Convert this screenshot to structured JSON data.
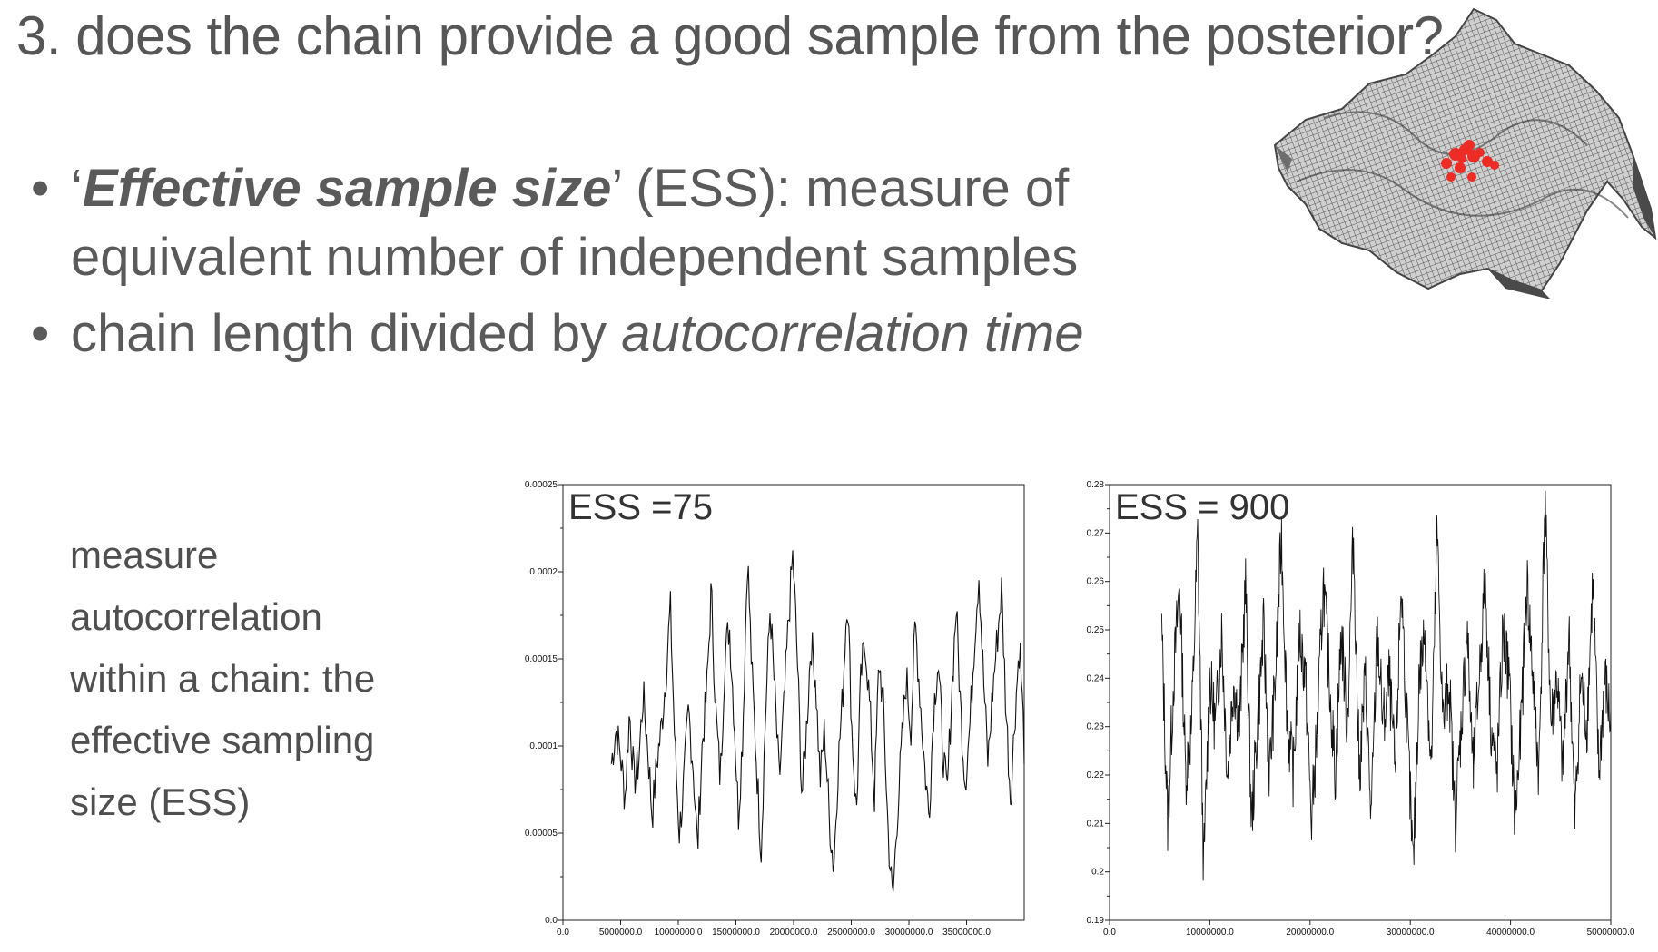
{
  "slide": {
    "title": "3. does the chain provide a good sample from the posterior?",
    "bullets": [
      {
        "quote_open": "‘",
        "term": "Effective sample size",
        "quote_close": "’",
        "rest_line1": " (ESS): measure of",
        "rest_line2": "equivalent number of independent samples"
      },
      {
        "text": "chain length divided by ",
        "em_text": "autocorrelation time"
      }
    ],
    "side_text": [
      "measure",
      "autocorrelation",
      "within a chain: the",
      "effective sampling",
      "size (ESS)"
    ],
    "image_icon": "posterior-surface-icon"
  },
  "chart_data": [
    {
      "type": "line",
      "title": "ESS =75",
      "xlim": [
        0,
        40000000
      ],
      "ylim": [
        0.0,
        0.00025
      ],
      "x_tick_labels": [
        "0.0",
        "5000000.0",
        "10000000.0",
        "15000000.0",
        "20000000.0",
        "25000000.0",
        "30000000.0",
        "35000000.0"
      ],
      "x_ticks": [
        0,
        5000000,
        10000000,
        15000000,
        20000000,
        25000000,
        30000000,
        35000000
      ],
      "y_tick_labels": [
        "0.0",
        "0.00005",
        "0.0001",
        "0.00015",
        "0.0002",
        "0.00025"
      ],
      "y_ticks": [
        0.0,
        5e-05,
        0.0001,
        0.00015,
        0.0002,
        0.00025
      ],
      "x_start": 4200000,
      "x_end": 40000000,
      "n_points": 420,
      "series": [
        {
          "values": [
            9e-05,
            0.00011,
            9.5e-05,
            7e-05,
            0.00012,
            8e-05,
            9e-05,
            0.00013,
            0.0001,
            6e-05,
            9e-05,
            0.00011,
            0.00014,
            0.00018,
            0.0001,
            5e-05,
            8e-05,
            0.00012,
            9e-05,
            4e-05,
            0.0001,
            0.00013,
            0.00019,
            0.00012,
            8e-05,
            0.00015,
            0.00017,
            0.00012,
            6e-05,
            0.00011,
            0.00021,
            0.00014,
            9e-05,
            4e-05,
            0.00012,
            0.00018,
            0.00013,
            8e-05,
            0.00012,
            0.00017,
            0.00021,
            0.00015,
            7e-05,
            0.00011,
            0.00016,
            0.00014,
            8e-05,
            0.00011,
            6e-05,
            3e-05,
            9e-05,
            0.00013,
            0.00019,
            0.00011,
            6e-05,
            0.00014,
            0.00016,
            0.00012,
            7e-05,
            0.00015,
            0.00012,
            5e-05,
            1e-05,
            6e-05,
            0.0001,
            0.00014,
            0.00011,
            0.00017,
            0.00013,
            9e-05,
            6e-05,
            0.00012,
            0.00015,
            0.0001,
            7e-05,
            0.00013,
            0.00018,
            0.00012,
            8e-05,
            0.00011,
            0.00016,
            0.0002,
            0.00014,
            9e-05,
            0.00013,
            0.00016,
            0.00019,
            0.00012,
            7e-05,
            0.00012,
            0.00016,
            0.0001
          ]
        }
      ]
    },
    {
      "type": "line",
      "title": "ESS = 900",
      "xlim": [
        0,
        50000000
      ],
      "ylim": [
        0.19,
        0.28
      ],
      "x_tick_labels": [
        "0.0",
        "10000000.0",
        "20000000.0",
        "30000000.0",
        "40000000.0",
        "50000000.0"
      ],
      "x_ticks": [
        0,
        10000000,
        20000000,
        30000000,
        40000000,
        50000000
      ],
      "y_tick_labels": [
        "0.19",
        "0.2",
        "0.21",
        "0.22",
        "0.23",
        "0.24",
        "0.25",
        "0.26",
        "0.27",
        "0.28"
      ],
      "y_ticks": [
        0.19,
        0.2,
        0.21,
        0.22,
        0.23,
        0.24,
        0.25,
        0.26,
        0.27,
        0.28
      ],
      "x_start": 5200000,
      "x_end": 50000000,
      "n_points": 900,
      "series": [
        {
          "values": [
            0.25,
            0.21,
            0.24,
            0.26,
            0.22,
            0.23,
            0.27,
            0.2,
            0.24,
            0.23,
            0.25,
            0.22,
            0.24,
            0.23,
            0.26,
            0.21,
            0.23,
            0.25,
            0.22,
            0.24,
            0.27,
            0.23,
            0.22,
            0.25,
            0.24,
            0.21,
            0.23,
            0.26,
            0.24,
            0.22,
            0.25,
            0.23,
            0.27,
            0.22,
            0.24,
            0.21,
            0.25,
            0.23,
            0.24,
            0.22,
            0.26,
            0.23,
            0.2,
            0.24,
            0.25,
            0.22,
            0.27,
            0.23,
            0.24,
            0.21,
            0.23,
            0.25,
            0.22,
            0.24,
            0.26,
            0.23,
            0.22,
            0.25,
            0.24,
            0.21,
            0.23,
            0.26,
            0.24,
            0.22,
            0.278,
            0.23,
            0.24,
            0.22,
            0.25,
            0.21,
            0.24,
            0.23,
            0.26,
            0.22,
            0.24,
            0.23
          ]
        }
      ]
    }
  ]
}
